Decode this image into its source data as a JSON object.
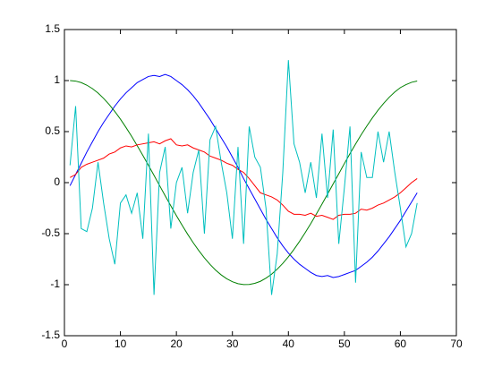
{
  "chart_data": {
    "type": "line",
    "x": [
      1,
      2,
      3,
      4,
      5,
      6,
      7,
      8,
      9,
      10,
      11,
      12,
      13,
      14,
      15,
      16,
      17,
      18,
      19,
      20,
      21,
      22,
      23,
      24,
      25,
      26,
      27,
      28,
      29,
      30,
      31,
      32,
      33,
      34,
      35,
      36,
      37,
      38,
      39,
      40,
      41,
      42,
      43,
      44,
      45,
      46,
      47,
      48,
      49,
      50,
      51,
      52,
      53,
      54,
      55,
      56,
      57,
      58,
      59,
      60,
      61,
      62,
      63
    ],
    "series": [
      {
        "color": "#0000ff",
        "values": [
          -0.03,
          0.08,
          0.19,
          0.3,
          0.4,
          0.5,
          0.59,
          0.67,
          0.75,
          0.82,
          0.88,
          0.93,
          0.98,
          1.01,
          1.04,
          1.05,
          1.04,
          1.06,
          1.04,
          1.0,
          0.96,
          0.91,
          0.85,
          0.78,
          0.7,
          0.62,
          0.53,
          0.44,
          0.35,
          0.25,
          0.15,
          0.04,
          -0.06,
          -0.16,
          -0.26,
          -0.36,
          -0.45,
          -0.54,
          -0.62,
          -0.69,
          -0.75,
          -0.8,
          -0.84,
          -0.88,
          -0.91,
          -0.92,
          -0.91,
          -0.93,
          -0.92,
          -0.9,
          -0.88,
          -0.86,
          -0.82,
          -0.78,
          -0.73,
          -0.67,
          -0.6,
          -0.53,
          -0.45,
          -0.37,
          -0.28,
          -0.19,
          -0.1
        ]
      },
      {
        "color": "#008000",
        "values": [
          1.0,
          0.995,
          0.98,
          0.955,
          0.921,
          0.878,
          0.825,
          0.765,
          0.697,
          0.622,
          0.54,
          0.454,
          0.362,
          0.267,
          0.17,
          0.071,
          -0.029,
          -0.129,
          -0.227,
          -0.323,
          -0.416,
          -0.505,
          -0.589,
          -0.666,
          -0.737,
          -0.801,
          -0.857,
          -0.904,
          -0.942,
          -0.971,
          -0.99,
          -0.999,
          -0.998,
          -0.987,
          -0.967,
          -0.936,
          -0.897,
          -0.848,
          -0.791,
          -0.726,
          -0.654,
          -0.575,
          -0.49,
          -0.401,
          -0.307,
          -0.211,
          -0.112,
          -0.012,
          0.087,
          0.187,
          0.284,
          0.378,
          0.469,
          0.554,
          0.634,
          0.709,
          0.776,
          0.836,
          0.888,
          0.931,
          0.96,
          0.983,
          0.996
        ]
      },
      {
        "color": "#ff0000",
        "values": [
          0.05,
          0.08,
          0.15,
          0.18,
          0.2,
          0.22,
          0.24,
          0.28,
          0.3,
          0.34,
          0.36,
          0.35,
          0.37,
          0.38,
          0.39,
          0.4,
          0.38,
          0.41,
          0.43,
          0.37,
          0.36,
          0.37,
          0.34,
          0.32,
          0.3,
          0.26,
          0.24,
          0.22,
          0.19,
          0.17,
          0.13,
          0.1,
          0.04,
          -0.03,
          -0.1,
          -0.12,
          -0.14,
          -0.17,
          -0.22,
          -0.28,
          -0.31,
          -0.31,
          -0.32,
          -0.3,
          -0.33,
          -0.32,
          -0.34,
          -0.36,
          -0.32,
          -0.31,
          -0.31,
          -0.3,
          -0.26,
          -0.27,
          -0.25,
          -0.22,
          -0.2,
          -0.17,
          -0.14,
          -0.1,
          -0.05,
          0.0,
          0.04
        ]
      },
      {
        "color": "#00bfbf",
        "values": [
          0.17,
          0.75,
          -0.45,
          -0.48,
          -0.25,
          0.2,
          -0.2,
          -0.55,
          -0.8,
          -0.2,
          -0.12,
          -0.3,
          -0.1,
          -0.55,
          0.48,
          -1.1,
          0.1,
          0.35,
          -0.45,
          0.0,
          0.15,
          -0.3,
          0.1,
          0.32,
          -0.5,
          0.42,
          0.55,
          0.2,
          -0.1,
          -0.55,
          0.35,
          -0.6,
          0.55,
          0.25,
          0.15,
          -0.25,
          -1.1,
          -0.7,
          0.1,
          1.2,
          0.38,
          0.2,
          -0.1,
          0.2,
          -0.15,
          0.48,
          -0.15,
          0.52,
          -0.6,
          -0.05,
          0.55,
          -0.98,
          0.3,
          0.05,
          0.05,
          0.5,
          0.2,
          0.5,
          0.1,
          -0.25,
          -0.63,
          -0.5,
          -0.2
        ]
      }
    ],
    "xlim": [
      0,
      70
    ],
    "xticks": [
      0,
      10,
      20,
      30,
      40,
      50,
      60,
      70
    ],
    "ylim": [
      -1.5,
      1.5
    ],
    "yticks": [
      -1.5,
      -1,
      -0.5,
      0,
      0.5,
      1,
      1.5
    ]
  }
}
